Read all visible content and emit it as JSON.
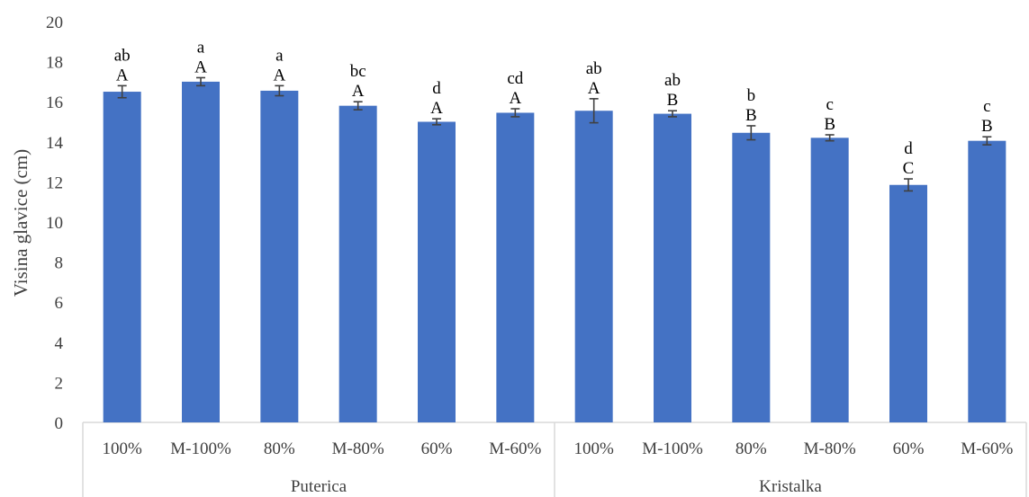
{
  "chart_data": {
    "type": "bar",
    "ylabel": "Visina glavice (cm)",
    "ylim": [
      0,
      20
    ],
    "yticks": [
      0,
      2,
      4,
      6,
      8,
      10,
      12,
      14,
      16,
      18,
      20
    ],
    "grid": false,
    "groups": [
      {
        "name": "Puterica",
        "categories": [
          "100%",
          "M-100%",
          "80%",
          "M-80%",
          "60%",
          "M-60%"
        ],
        "values": [
          16.5,
          17.0,
          16.55,
          15.8,
          15.0,
          15.45
        ],
        "errors": [
          0.3,
          0.2,
          0.25,
          0.2,
          0.15,
          0.2
        ],
        "letters_lower": [
          "ab",
          "a",
          "a",
          "bc",
          "d",
          "cd"
        ],
        "letters_upper": [
          "A",
          "A",
          "A",
          "A",
          "A",
          "A"
        ]
      },
      {
        "name": "Kristalka",
        "categories": [
          "100%",
          "M-100%",
          "80%",
          "M-80%",
          "60%",
          "M-60%"
        ],
        "values": [
          15.55,
          15.4,
          14.45,
          14.2,
          11.85,
          14.05
        ],
        "errors": [
          0.6,
          0.15,
          0.35,
          0.15,
          0.3,
          0.2
        ],
        "letters_lower": [
          "ab",
          "ab",
          "b",
          "c",
          "d",
          "c"
        ],
        "letters_upper": [
          "A",
          "B",
          "B",
          "B",
          "C",
          "B"
        ]
      }
    ],
    "colors": {
      "bar": "#4472C4",
      "error": "#404040",
      "axis": "#D9D9D9",
      "text": "#404040"
    }
  }
}
